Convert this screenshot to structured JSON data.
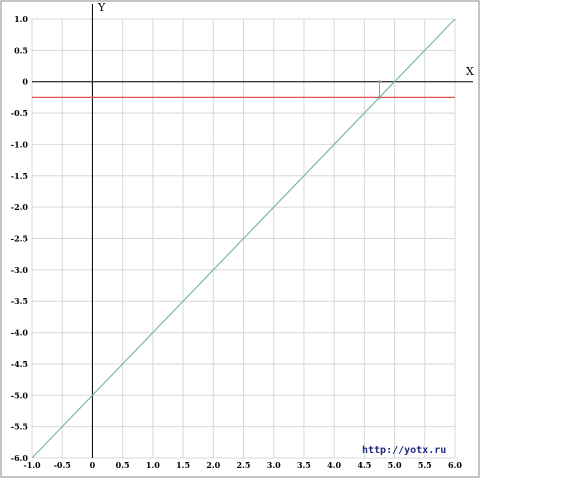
{
  "chart_data": {
    "type": "line",
    "x_axis_name": "X",
    "y_axis_name": "Y",
    "xlim": [
      -1.0,
      6.0
    ],
    "ylim": [
      -6.0,
      1.0
    ],
    "grid": true,
    "x_ticks": [
      "-1.0",
      "-0.5",
      "0",
      "0.5",
      "1.0",
      "1.5",
      "2.0",
      "2.5",
      "3.0",
      "3.5",
      "4.0",
      "4.5",
      "5.0",
      "5.5",
      "6.0"
    ],
    "y_ticks": [
      "1.0",
      "0.5",
      "0",
      "-0.5",
      "-1.0",
      "-1.5",
      "-2.0",
      "-2.5",
      "-3.0",
      "-3.5",
      "-4.0",
      "-4.5",
      "-5.0",
      "-5.5",
      "-6.0"
    ],
    "series": [
      {
        "color": "#7ab8a8",
        "x": [
          -1.0,
          6.0
        ],
        "y": [
          -6.0,
          1.0
        ]
      },
      {
        "color": "#e05050",
        "x": [
          -1.0,
          6.0
        ],
        "y": [
          -0.25,
          -0.25
        ]
      }
    ],
    "marker": {
      "x": 4.75,
      "y_from": 0,
      "y_to": -0.25,
      "color": "#999999"
    },
    "watermark": "http://yotx.ru"
  }
}
